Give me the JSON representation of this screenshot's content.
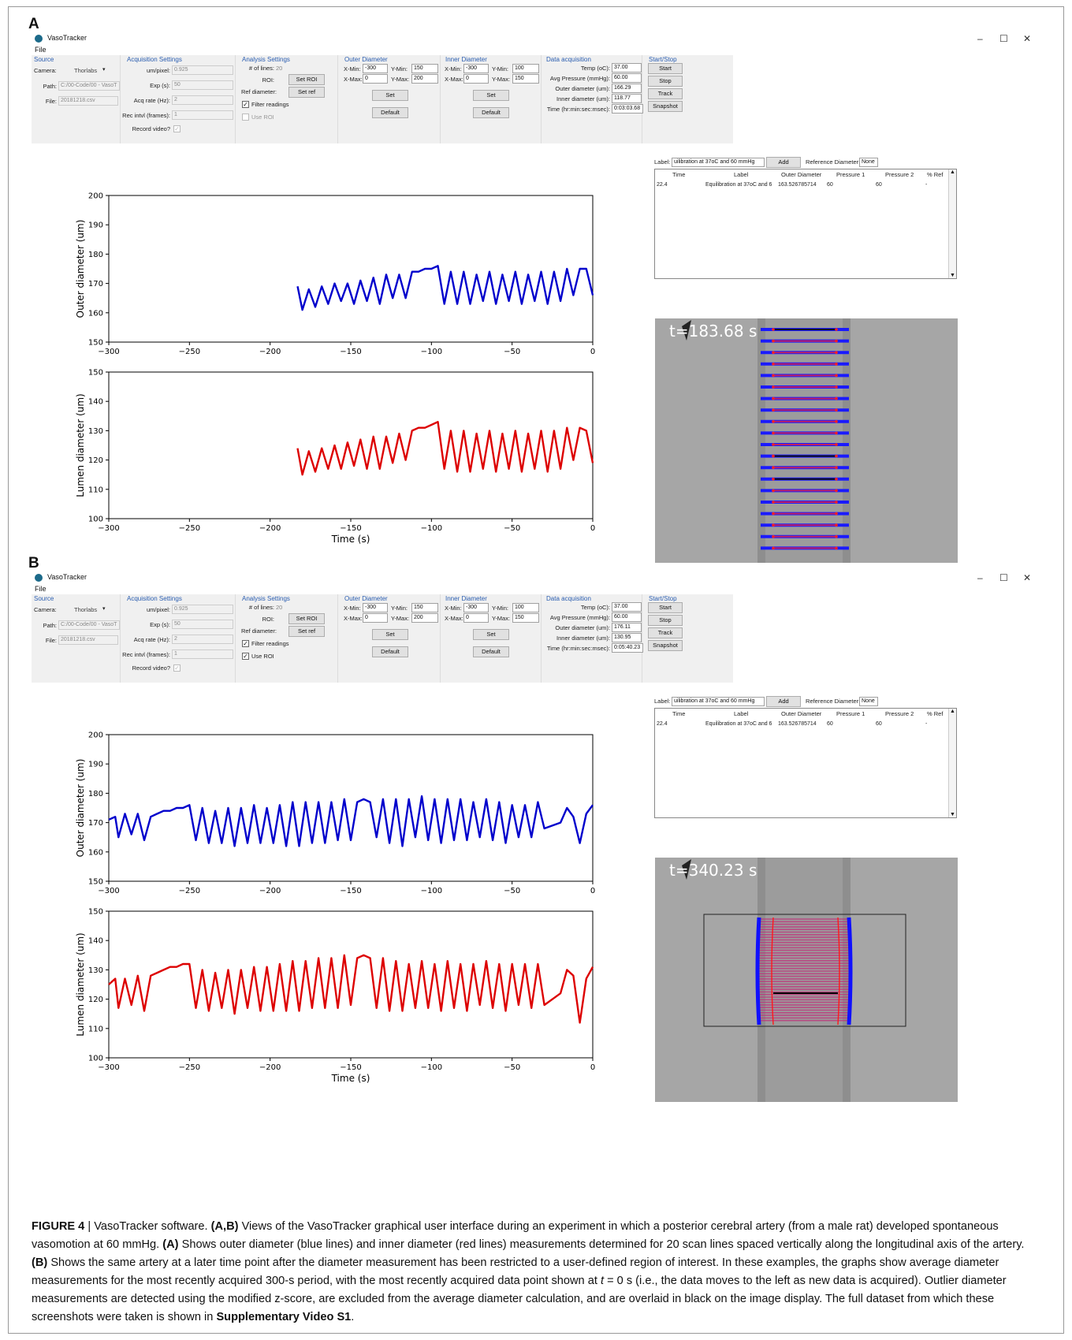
{
  "figure_label": "FIGURE 4",
  "caption": {
    "p1": " VasoTracker software. ",
    "p2": "(A,B)",
    "p3": " Views of the VasoTracker graphical user interface during an experiment in which a posterior cerebral artery (from a male rat) developed spontaneous vasomotion at 60 mmHg. ",
    "p4": "(A)",
    "p5": " Shows outer diameter (blue lines) and inner diameter (red lines) measurements determined for 20 scan lines spaced vertically along the longitudinal axis of the artery. ",
    "p6": "(B)",
    "p7": " Shows the same artery at a later time point after the diameter measurement has been restricted to a user-defined region of interest. In these examples, the graphs show average diameter measurements for the most recently acquired 300-s period, with the most recently acquired data point shown at ",
    "p8": "t",
    "p9": " = 0 s (i.e., the data moves to the left as new data is acquired). Outlier diameter measurements are detected using the modified z-score, are excluded from the average diameter calculation, and are overlaid in black on the image display. The full dataset from which these screenshots were taken is shown in ",
    "p10": "Supplementary Video S1",
    "p11": "."
  },
  "labels": {
    "app_title": "VasoTracker",
    "menu_file": "File",
    "minimize": "–",
    "maximize": "☐",
    "close": "✕",
    "grp_source": "Source",
    "grp_acq": "Acquisition Settings",
    "grp_analysis": "Analysis Settings",
    "grp_outer": "Outer Diameter",
    "grp_inner": "Inner Diameter",
    "grp_data": "Data acquisition",
    "grp_startstop": "Start/Stop",
    "camera": "Camera:",
    "path": "Path:",
    "file": "File:",
    "um_pixel": "um/pixel:",
    "exp": "Exp (s):",
    "acq_rate": "Acq rate (Hz):",
    "rec_intvl": "Rec intvl (frames):",
    "record_video": "Record video?",
    "num_lines": "# of lines:",
    "roi": "ROI:",
    "ref_diameter": "Ref diameter:",
    "set_roi": "Set ROI",
    "set_ref": "Set ref",
    "filter_readings": "Filter readings",
    "use_roi": "Use ROI",
    "xmin": "X-Min:",
    "xmax": "X-Max:",
    "ymin": "Y-Min:",
    "ymax": "Y-Max:",
    "set": "Set",
    "default": "Default",
    "temp": "Temp (oC):",
    "avg_pressure": "Avg Pressure (mmHg):",
    "outer_um": "Outer diameter (um):",
    "inner_um": "Inner diameter (um):",
    "time_label": "Time (hr:min:sec:msec):",
    "start": "Start",
    "stop": "Stop",
    "track": "Track",
    "snapshot": "Snapshot",
    "label_prefix": "Label:",
    "add": "Add",
    "reference_diameter": "Reference Diameter:",
    "col_time": "Time",
    "col_label": "Label",
    "col_outer": "Outer Diameter",
    "col_p1": "Pressure 1",
    "col_p2": "Pressure 2",
    "col_ref": "% Ref"
  },
  "panels": [
    {
      "letter": "A",
      "camera_value": "Thorlabs",
      "path_value": "C:/00-Code/00 - VasoT",
      "file_value": "20181218.csv",
      "um_pixel_value": "0.925",
      "exp_value": "50",
      "acq_rate_value": "2",
      "rec_intvl_value": "1",
      "num_lines_value": "20",
      "filter_checked": "✓",
      "use_roi_checked": "",
      "outer_xmin": "-300",
      "outer_xmax": "0",
      "outer_ymin": "150",
      "outer_ymax": "200",
      "inner_xmin": "-300",
      "inner_xmax": "0",
      "inner_ymin": "100",
      "inner_ymax": "150",
      "temp_value": "37.00",
      "avg_pressure_value": "60.00",
      "outer_um_value": "166.29",
      "inner_um_value": "118.77",
      "time_value": "0:03:03.68",
      "label_value": "uilibration at 37oC and 60 mmHg",
      "reference_value": "None",
      "row": {
        "time": "22.4",
        "label": "Equilibration at 37oC and 6",
        "outer": "163.526785714",
        "p1": "60",
        "p2": "60",
        "ref": "-"
      },
      "cam_time": "t=183.68 s",
      "roi_box": false,
      "xlabel": "",
      "outer_chart": {
        "type": "line",
        "ylabel": "Outer diameter (um)",
        "color": "#0000cc",
        "xlim": [
          -300,
          0
        ],
        "ylim": [
          150,
          200
        ],
        "xticks": [
          "−300",
          "−250",
          "−200",
          "−150",
          "−100",
          "−50",
          "0"
        ],
        "yticks": [
          "150",
          "160",
          "170",
          "180",
          "190",
          "200"
        ],
        "x": [
          -183,
          -180,
          -176,
          -172,
          -168,
          -164,
          -160,
          -156,
          -152,
          -148,
          -144,
          -140,
          -136,
          -132,
          -128,
          -124,
          -120,
          -116,
          -112,
          -108,
          -104,
          -100,
          -96,
          -92,
          -88,
          -84,
          -80,
          -76,
          -72,
          -68,
          -64,
          -60,
          -56,
          -52,
          -48,
          -44,
          -40,
          -36,
          -32,
          -28,
          -24,
          -20,
          -16,
          -12,
          -8,
          -4,
          0
        ],
        "y": [
          169,
          161,
          168,
          162,
          169,
          163,
          170,
          164,
          170,
          163,
          171,
          164,
          172,
          163,
          173,
          165,
          173,
          165,
          174,
          174,
          175,
          175,
          176,
          163,
          174,
          163,
          174,
          163,
          173,
          164,
          174,
          163,
          173,
          164,
          174,
          163,
          173,
          164,
          174,
          163,
          174,
          164,
          175,
          166,
          175,
          175,
          166
        ]
      },
      "inner_chart": {
        "type": "line",
        "ylabel": "Lumen diameter (um)",
        "color": "#dd0000",
        "xlim": [
          -300,
          0
        ],
        "ylim": [
          100,
          150
        ],
        "xticks": [
          "−300",
          "−250",
          "−200",
          "−150",
          "−100",
          "−50",
          "0"
        ],
        "yticks": [
          "100",
          "110",
          "120",
          "130",
          "140",
          "150"
        ],
        "x": [
          -183,
          -180,
          -176,
          -172,
          -168,
          -164,
          -160,
          -156,
          -152,
          -148,
          -144,
          -140,
          -136,
          -132,
          -128,
          -124,
          -120,
          -116,
          -112,
          -108,
          -104,
          -100,
          -96,
          -92,
          -88,
          -84,
          -80,
          -76,
          -72,
          -68,
          -64,
          -60,
          -56,
          -52,
          -48,
          -44,
          -40,
          -36,
          -32,
          -28,
          -24,
          -20,
          -16,
          -12,
          -8,
          -4,
          0
        ],
        "y": [
          124,
          115,
          123,
          116,
          124,
          117,
          125,
          117,
          126,
          118,
          127,
          117,
          128,
          117,
          128,
          119,
          129,
          120,
          130,
          131,
          131,
          132,
          133,
          117,
          130,
          116,
          130,
          116,
          129,
          117,
          130,
          116,
          129,
          117,
          130,
          116,
          129,
          117,
          130,
          116,
          130,
          117,
          131,
          120,
          131,
          130,
          119
        ]
      }
    },
    {
      "letter": "B",
      "camera_value": "Thorlabs",
      "path_value": "C:/00-Code/00 - VasoT",
      "file_value": "20181218.csv",
      "um_pixel_value": "0.925",
      "exp_value": "50",
      "acq_rate_value": "2",
      "rec_intvl_value": "1",
      "num_lines_value": "20",
      "filter_checked": "✓",
      "use_roi_checked": "✓",
      "outer_xmin": "-300",
      "outer_xmax": "0",
      "outer_ymin": "150",
      "outer_ymax": "200",
      "inner_xmin": "-300",
      "inner_xmax": "0",
      "inner_ymin": "100",
      "inner_ymax": "150",
      "temp_value": "37.00",
      "avg_pressure_value": "60.00",
      "outer_um_value": "176.11",
      "inner_um_value": "130.95",
      "time_value": "0:05:40.23",
      "label_value": "uilibration at 37oC and 60 mmHg",
      "reference_value": "None",
      "row": {
        "time": "22.4",
        "label": "Equilibration at 37oC and 6",
        "outer": "163.526785714",
        "p1": "60",
        "p2": "60",
        "ref": "-"
      },
      "cam_time": "t=340.23 s",
      "roi_box": true,
      "xlabel": "Time (s)",
      "outer_chart": {
        "type": "line",
        "ylabel": "Outer diameter (um)",
        "color": "#0000cc",
        "xlim": [
          -300,
          0
        ],
        "ylim": [
          150,
          200
        ],
        "xticks": [
          "−300",
          "−250",
          "−200",
          "−150",
          "−100",
          "−50",
          "0"
        ],
        "yticks": [
          "150",
          "160",
          "170",
          "180",
          "190",
          "200"
        ],
        "x": [
          -300,
          -296,
          -294,
          -290,
          -286,
          -282,
          -278,
          -274,
          -270,
          -266,
          -262,
          -258,
          -254,
          -250,
          -246,
          -242,
          -238,
          -234,
          -230,
          -226,
          -222,
          -218,
          -214,
          -210,
          -206,
          -202,
          -198,
          -194,
          -190,
          -186,
          -182,
          -178,
          -174,
          -170,
          -166,
          -162,
          -158,
          -154,
          -150,
          -146,
          -142,
          -138,
          -134,
          -130,
          -126,
          -122,
          -118,
          -114,
          -110,
          -106,
          -102,
          -98,
          -94,
          -90,
          -86,
          -82,
          -78,
          -74,
          -70,
          -66,
          -62,
          -58,
          -54,
          -50,
          -46,
          -42,
          -38,
          -34,
          -30,
          -20,
          -16,
          -12,
          -8,
          -4,
          0
        ],
        "y": [
          171,
          172,
          165,
          173,
          166,
          173,
          164,
          172,
          173,
          174,
          174,
          175,
          175,
          176,
          164,
          175,
          163,
          174,
          163,
          175,
          162,
          175,
          163,
          176,
          163,
          175,
          163,
          176,
          162,
          177,
          162,
          177,
          163,
          177,
          163,
          177,
          164,
          178,
          164,
          177,
          178,
          177,
          165,
          178,
          163,
          178,
          162,
          178,
          165,
          179,
          164,
          178,
          163,
          178,
          164,
          178,
          164,
          177,
          165,
          178,
          164,
          177,
          163,
          176,
          165,
          176,
          165,
          177,
          168,
          170,
          175,
          172,
          163,
          173,
          176
        ]
      },
      "inner_chart": {
        "type": "line",
        "ylabel": "Lumen diameter (um)",
        "color": "#dd0000",
        "xlim": [
          -300,
          0
        ],
        "ylim": [
          100,
          150
        ],
        "xticks": [
          "−300",
          "−250",
          "−200",
          "−150",
          "−100",
          "−50",
          "0"
        ],
        "yticks": [
          "100",
          "110",
          "120",
          "130",
          "140",
          "150"
        ],
        "x": [
          -300,
          -296,
          -294,
          -290,
          -286,
          -282,
          -278,
          -274,
          -270,
          -266,
          -262,
          -258,
          -254,
          -250,
          -246,
          -242,
          -238,
          -234,
          -230,
          -226,
          -222,
          -218,
          -214,
          -210,
          -206,
          -202,
          -198,
          -194,
          -190,
          -186,
          -182,
          -178,
          -174,
          -170,
          -166,
          -162,
          -158,
          -154,
          -150,
          -146,
          -142,
          -138,
          -134,
          -130,
          -126,
          -122,
          -118,
          -114,
          -110,
          -106,
          -102,
          -98,
          -94,
          -90,
          -86,
          -82,
          -78,
          -74,
          -70,
          -66,
          -62,
          -58,
          -54,
          -50,
          -46,
          -42,
          -38,
          -34,
          -30,
          -20,
          -16,
          -12,
          -8,
          -4,
          0
        ],
        "y": [
          125,
          127,
          117,
          127,
          118,
          128,
          116,
          128,
          129,
          130,
          131,
          131,
          132,
          132,
          117,
          130,
          116,
          129,
          117,
          130,
          115,
          130,
          117,
          131,
          116,
          131,
          116,
          132,
          116,
          133,
          116,
          133,
          117,
          134,
          117,
          134,
          117,
          135,
          118,
          134,
          135,
          134,
          117,
          134,
          116,
          133,
          116,
          132,
          117,
          133,
          117,
          132,
          116,
          133,
          117,
          132,
          116,
          132,
          118,
          133,
          117,
          132,
          116,
          132,
          118,
          132,
          117,
          132,
          118,
          122,
          130,
          128,
          112,
          127,
          131
        ]
      }
    }
  ]
}
